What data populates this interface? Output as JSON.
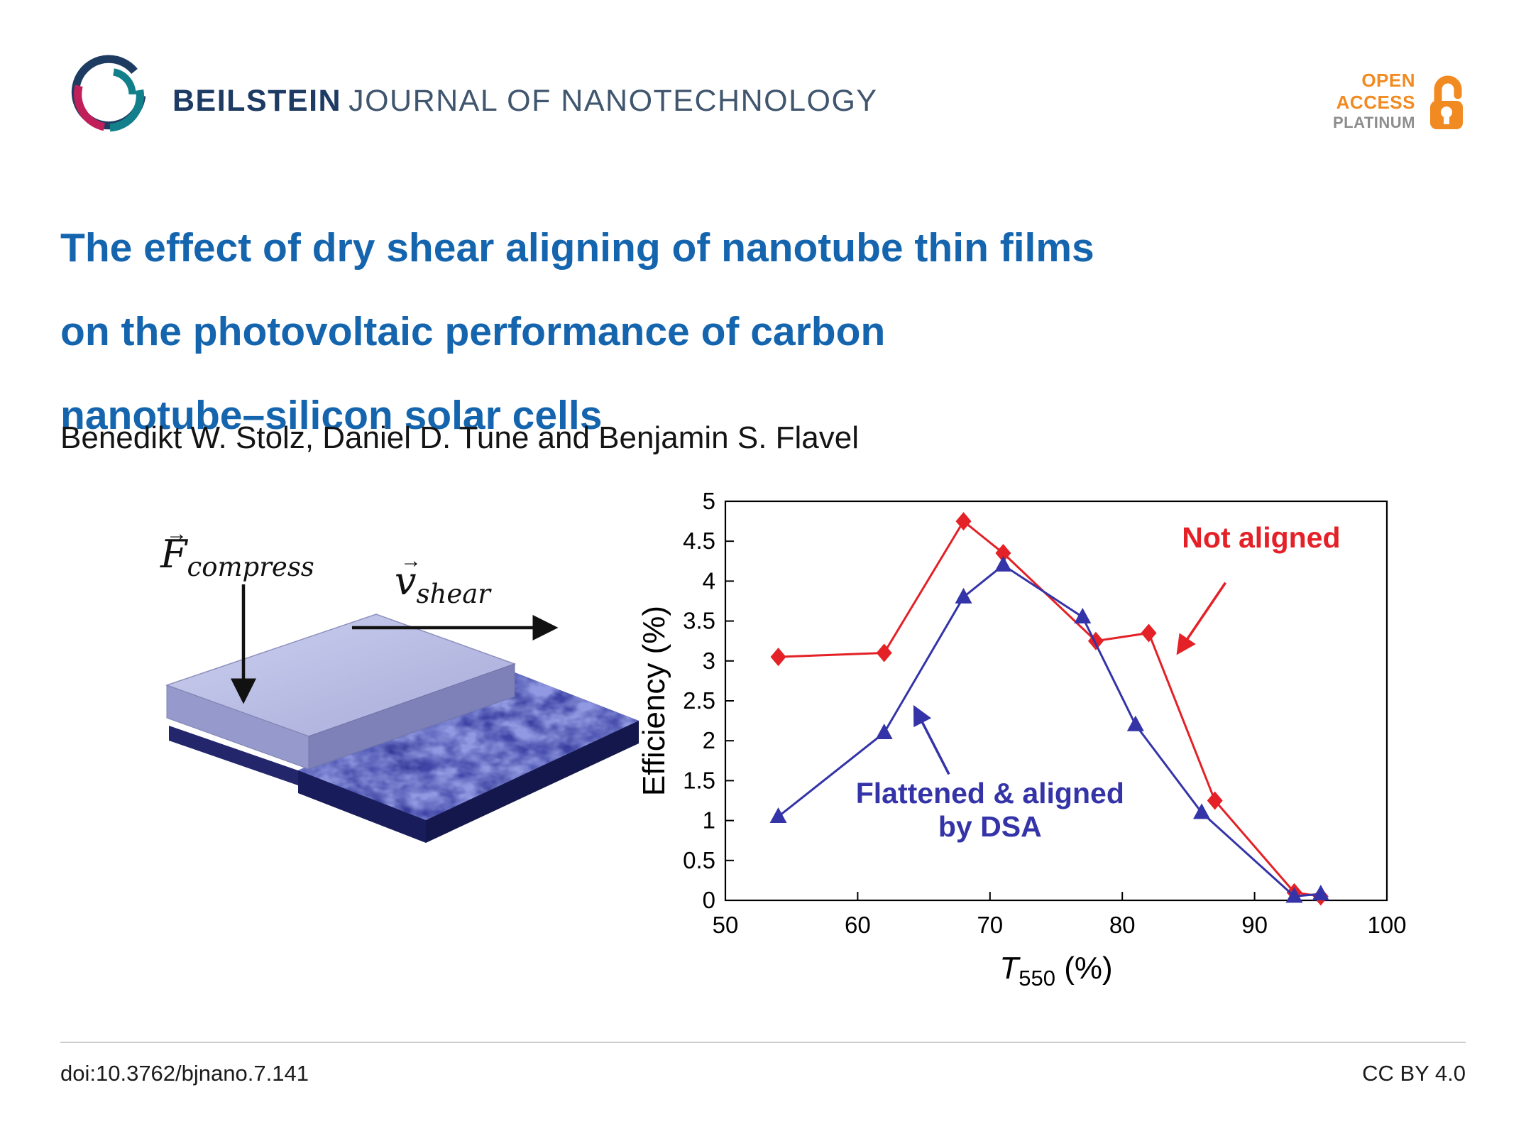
{
  "colors": {
    "brand_navy": "#1d3b63",
    "title_blue": "#1565ae",
    "accent_orange": "#f18a21",
    "series_red": "#e32126",
    "series_blue": "#3434a8"
  },
  "header": {
    "journal_bold": "BEILSTEIN",
    "journal_rest": "JOURNAL OF NANOTECHNOLOGY",
    "badge": {
      "open": "OPEN",
      "access": "ACCESS",
      "platinum": "PLATINUM"
    }
  },
  "article": {
    "title_line1": "The effect of dry shear aligning of nanotube thin films",
    "title_line2": "on the photovoltaic performance of carbon",
    "title_line3": "nanotube–silicon solar cells",
    "authors": "Benedikt W. Stolz, Daniel D. Tune and Benjamin S. Flavel"
  },
  "illustration": {
    "vector_arrow": "→",
    "force_symbol": "F",
    "force_subscript": "compress",
    "shear_symbol": "v",
    "shear_subscript": "shear"
  },
  "chart_data": {
    "type": "line",
    "xlabel": {
      "symbol": "T",
      "subscript": "550",
      "unit": "(%)"
    },
    "ylabel": "Efficiency (%)",
    "xlim": [
      50,
      100
    ],
    "ylim": [
      0,
      5
    ],
    "xticks": [
      50,
      60,
      70,
      80,
      90,
      100
    ],
    "yticks": [
      0,
      0.5,
      1,
      1.5,
      2,
      2.5,
      3,
      3.5,
      4,
      4.5,
      5
    ],
    "grid": false,
    "legend_position": "none",
    "series": [
      {
        "name": "Not aligned",
        "color": "#e32126",
        "marker": "diamond",
        "points": [
          [
            54,
            3.05
          ],
          [
            62,
            3.1
          ],
          [
            68,
            4.75
          ],
          [
            71,
            4.35
          ],
          [
            78,
            3.25
          ],
          [
            82,
            3.35
          ],
          [
            87,
            1.25
          ],
          [
            93,
            0.1
          ],
          [
            95,
            0.05
          ]
        ]
      },
      {
        "name": "Flattened & aligned by DSA",
        "color": "#3434a8",
        "marker": "triangle",
        "points": [
          [
            54,
            1.05
          ],
          [
            62,
            2.1
          ],
          [
            68,
            3.8
          ],
          [
            71,
            4.2
          ],
          [
            77,
            3.55
          ],
          [
            81,
            2.2
          ],
          [
            86,
            1.1
          ],
          [
            93,
            0.05
          ],
          [
            95,
            0.08
          ]
        ]
      }
    ],
    "annotations": [
      {
        "lines": [
          "Not aligned"
        ],
        "color": "#e32126",
        "text_xy": [
          90.5,
          4.42
        ],
        "arrow_from": [
          87.8,
          3.98
        ],
        "arrow_to": [
          84.2,
          3.1
        ]
      },
      {
        "lines": [
          "Flattened & aligned",
          "by DSA"
        ],
        "color": "#3434a8",
        "text_xy": [
          70,
          1.22
        ],
        "arrow_from": [
          66.9,
          1.58
        ],
        "arrow_to": [
          64.3,
          2.42
        ]
      }
    ]
  },
  "footer": {
    "doi": "doi:10.3762/bjnano.7.141",
    "license": "CC BY 4.0"
  }
}
